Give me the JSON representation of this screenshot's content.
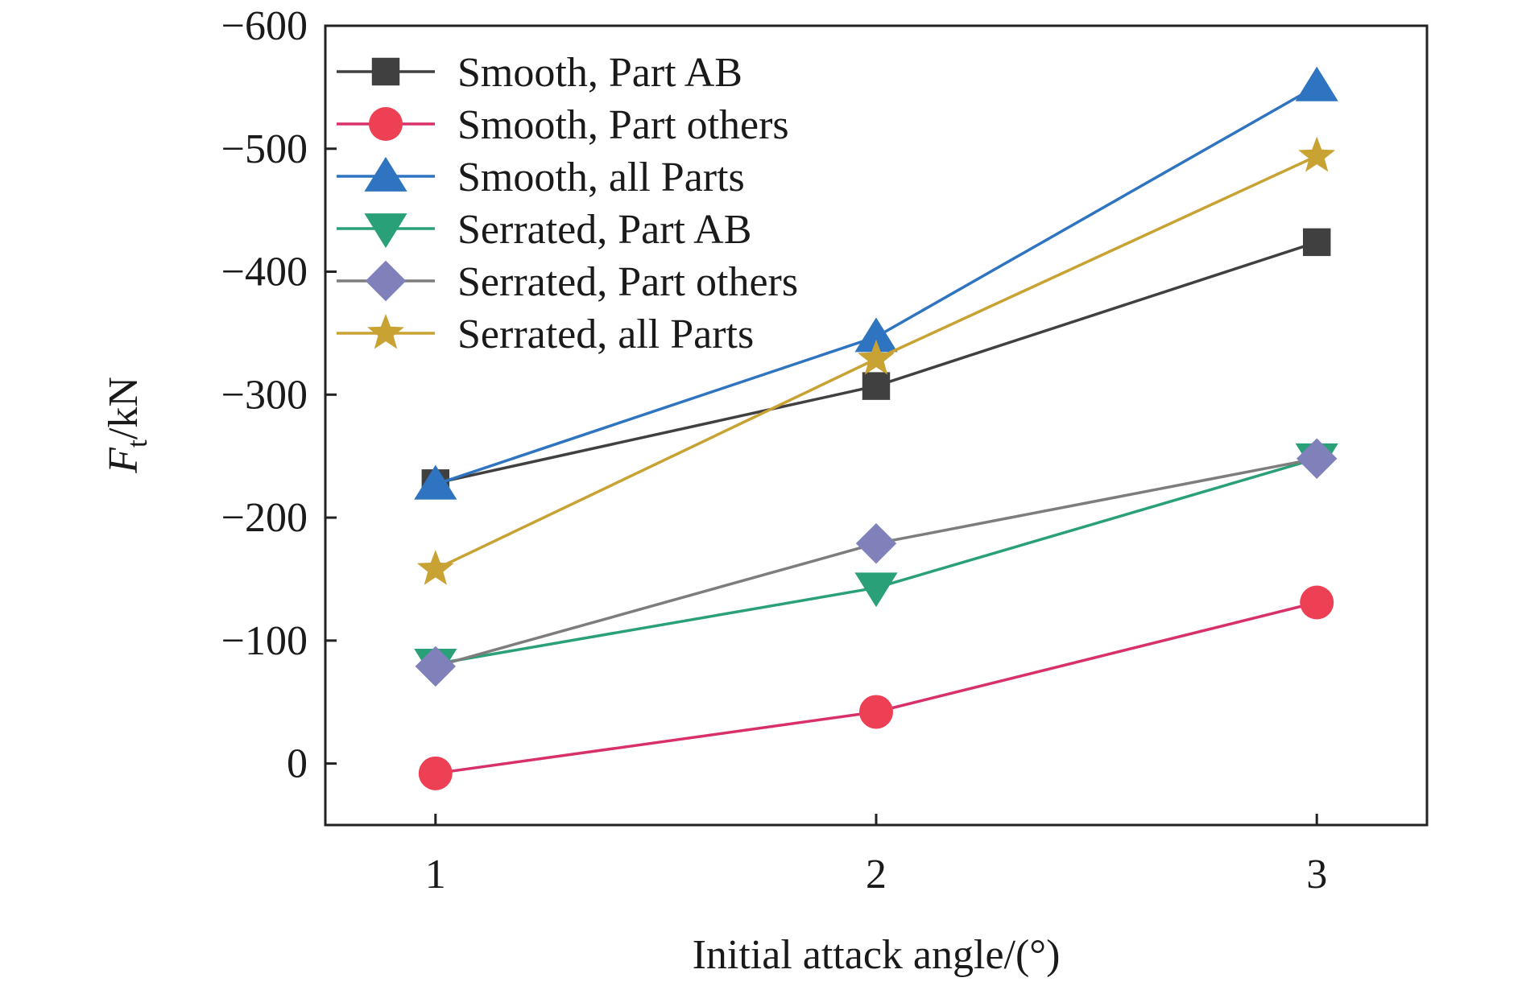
{
  "chart_data": {
    "type": "line",
    "xlabel": "Initial attack angle/(°)",
    "ylabel": {
      "main": "F",
      "sub": "t",
      "rest": "/kN"
    },
    "x": [
      1,
      2,
      3
    ],
    "xlim": [
      0.75,
      3.25
    ],
    "ylim": [
      50,
      -600
    ],
    "y_inverted": true,
    "x_ticks": [
      1,
      2,
      3
    ],
    "y_ticks": [
      0,
      -100,
      -200,
      -300,
      -400,
      -500,
      -600
    ],
    "y_tick_labels": [
      "0",
      "−100",
      "−200",
      "−300",
      "−400",
      "−500",
      "−600"
    ],
    "grid": false,
    "legend_position": "top-left",
    "series": [
      {
        "name": "Smooth, Part AB",
        "values": [
          -228,
          -307,
          -424
        ],
        "color": "#404040",
        "marker": "square"
      },
      {
        "name": "Smooth, Part others",
        "values": [
          8,
          -42,
          -131
        ],
        "color": "#ee4054",
        "line_color": "#d8316a",
        "marker": "circle"
      },
      {
        "name": "Smooth, all Parts",
        "values": [
          -227,
          -347,
          -551
        ],
        "color": "#2f74c0",
        "marker": "triangle-up"
      },
      {
        "name": "Serrated, Part AB",
        "values": [
          -81,
          -143,
          -248
        ],
        "color": "#2aa078",
        "marker": "triangle-down"
      },
      {
        "name": "Serrated, Part others",
        "values": [
          -79,
          -179,
          -248
        ],
        "color": "#8080ba",
        "line_color": "#7d7d7d",
        "marker": "diamond"
      },
      {
        "name": "Serrated, all Parts",
        "values": [
          -158,
          -329,
          -494
        ],
        "color": "#c8a232",
        "marker": "star"
      }
    ]
  }
}
